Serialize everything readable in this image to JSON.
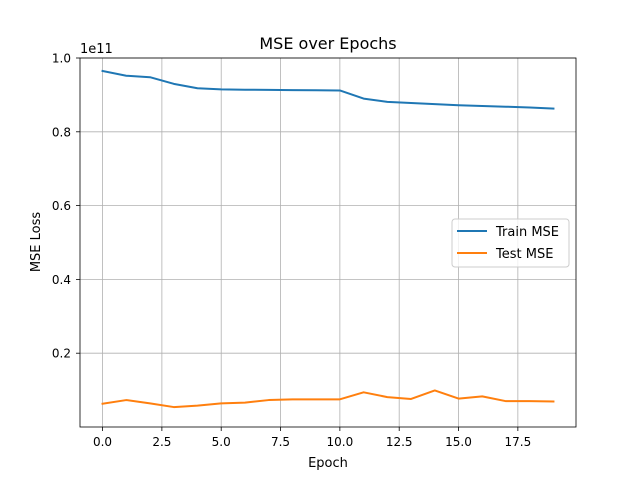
{
  "chart_data": {
    "type": "line",
    "title": "MSE over Epochs",
    "xlabel": "Epoch",
    "ylabel": "MSE Loss",
    "y_offset_label": "1e11",
    "xlim": [
      -0.95,
      19.95
    ],
    "ylim": [
      0.0,
      1.0
    ],
    "xticks": [
      0.0,
      2.5,
      5.0,
      7.5,
      10.0,
      12.5,
      15.0,
      17.5
    ],
    "xtick_labels": [
      "0.0",
      "2.5",
      "5.0",
      "7.5",
      "10.0",
      "12.5",
      "15.0",
      "17.5"
    ],
    "yticks": [
      0.2,
      0.4,
      0.6,
      0.8,
      1.0
    ],
    "ytick_labels": [
      "0.2",
      "0.4",
      "0.6",
      "0.8",
      "1.0"
    ],
    "grid": true,
    "legend_position": "center-right",
    "x": [
      0,
      1,
      2,
      3,
      4,
      5,
      6,
      7,
      8,
      9,
      10,
      11,
      12,
      13,
      14,
      15,
      16,
      17,
      18,
      19
    ],
    "series": [
      {
        "name": "Train MSE",
        "color": "#1f77b4",
        "values": [
          0.965,
          0.952,
          0.948,
          0.93,
          0.918,
          0.915,
          0.914,
          0.9135,
          0.913,
          0.9125,
          0.912,
          0.89,
          0.881,
          0.878,
          0.875,
          0.872,
          0.87,
          0.868,
          0.866,
          0.863
        ]
      },
      {
        "name": "Test MSE",
        "color": "#ff7f0e",
        "values": [
          0.063,
          0.073,
          0.064,
          0.054,
          0.058,
          0.064,
          0.066,
          0.073,
          0.075,
          0.075,
          0.075,
          0.094,
          0.081,
          0.076,
          0.099,
          0.077,
          0.083,
          0.07,
          0.07,
          0.069
        ]
      }
    ]
  }
}
